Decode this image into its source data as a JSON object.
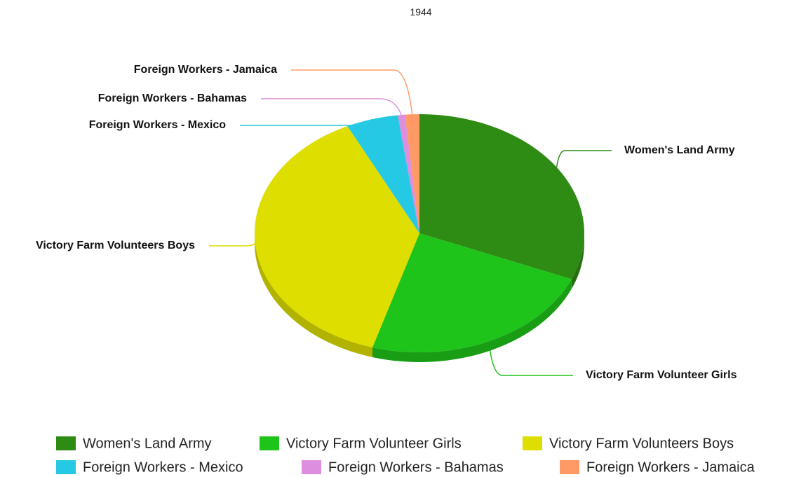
{
  "chart_data": {
    "type": "pie",
    "title": "1944",
    "categories": [
      "Women's Land Army",
      "Victory Farm Volunteer Girls",
      "Victory Farm Volunteers Boys",
      "Foreign Workers - Mexico",
      "Foreign Workers - Bahamas",
      "Foreign Workers - Jamaica"
    ],
    "values": [
      31.3,
      23.3,
      38.2,
      5.1,
      0.7,
      1.4
    ],
    "colors": [
      "#2e8b13",
      "#1ec41a",
      "#dede00",
      "#26c9e3",
      "#dd8edf",
      "#ff9966"
    ],
    "legend": "bottom"
  }
}
